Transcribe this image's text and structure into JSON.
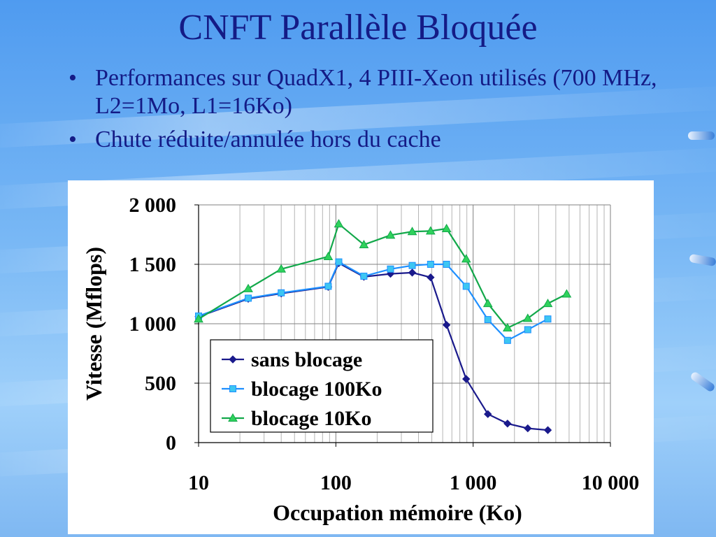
{
  "slide": {
    "title": "CNFT Parallèle Bloquée",
    "bullets": [
      "Performances sur QuadX1, 4 PIII-Xeon utilisés (700 MHz, L2=1Mo, L1=16Ko)",
      "Chute réduite/annulée hors du cache"
    ],
    "bullet_symbol": "•"
  },
  "colors": {
    "title_text": "#141b86",
    "series_sans_blocage": "#1a1a8c",
    "series_100ko": "#1e8fff",
    "series_10ko": "#12a84a",
    "marker_100ko_fill": "#3dc6f2",
    "marker_10ko_fill": "#2fd25c"
  },
  "chart_data": {
    "type": "line",
    "title": "",
    "xlabel": "Occupation mémoire (Ko)",
    "ylabel": "Vitesse (Mflops)",
    "x_scale": "log",
    "xlim": [
      10,
      10000
    ],
    "ylim": [
      0,
      2000
    ],
    "x_ticks": [
      10,
      100,
      1000,
      10000
    ],
    "x_tick_labels": [
      "10",
      "100",
      "1 000",
      "10 000"
    ],
    "y_ticks": [
      0,
      500,
      1000,
      1500,
      2000
    ],
    "y_tick_labels": [
      "0",
      "500",
      "1 000",
      "1 500",
      "2 000"
    ],
    "grid": true,
    "legend_position": "lower-left",
    "series": [
      {
        "name": "sans blocage",
        "marker": "diamond",
        "x": [
          10,
          23,
          40,
          88,
          105,
          160,
          250,
          360,
          490,
          640,
          890,
          1280,
          1780,
          2500,
          3500
        ],
        "y": [
          1060,
          1210,
          1255,
          1310,
          1510,
          1395,
          1420,
          1430,
          1390,
          990,
          535,
          240,
          160,
          120,
          105
        ]
      },
      {
        "name": "blocage 100Ko",
        "marker": "square",
        "x": [
          10,
          23,
          40,
          88,
          105,
          160,
          250,
          360,
          490,
          640,
          890,
          1280,
          1780,
          2500,
          3500
        ],
        "y": [
          1065,
          1215,
          1260,
          1315,
          1520,
          1400,
          1460,
          1490,
          1500,
          1500,
          1315,
          1035,
          860,
          950,
          1040
        ]
      },
      {
        "name": "blocage 10Ko",
        "marker": "triangle",
        "x": [
          10,
          23,
          40,
          88,
          105,
          160,
          250,
          360,
          490,
          640,
          890,
          1280,
          1780,
          2500,
          3500,
          4800
        ],
        "y": [
          1040,
          1295,
          1460,
          1565,
          1840,
          1665,
          1745,
          1775,
          1780,
          1800,
          1545,
          1170,
          965,
          1045,
          1170,
          1250
        ]
      }
    ]
  }
}
